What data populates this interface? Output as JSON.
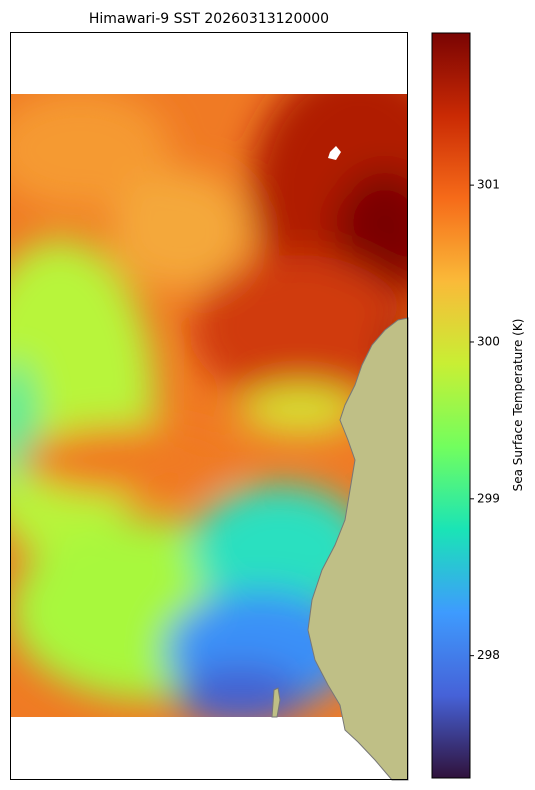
{
  "chart_data": {
    "type": "heatmap",
    "title": "Himawari-9 SST 20260313120000",
    "colorbar_label": "Sea Surface Temperature (K)",
    "colormap": "turbo",
    "clim": [
      297.22,
      301.97
    ],
    "cticks": [
      298,
      299,
      300,
      301
    ]
  }
}
